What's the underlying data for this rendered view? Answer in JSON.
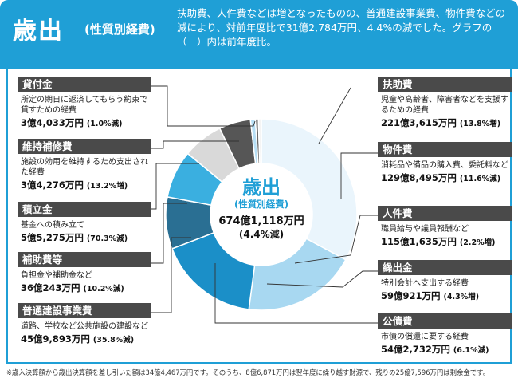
{
  "header": {
    "title": "歳出",
    "subtitle": "(性質別経費)",
    "text": "扶助費、人件費などは増となったものの、普通建設事業費、物件費などの減により、対前年度比で31億2,784万円、4.4%の減でした。グラフの（　）内は前年度比。"
  },
  "center": {
    "title": "歳出",
    "subtitle": "(性質別経費)",
    "total": "674億1,118万円",
    "change": "(4.4%減)"
  },
  "categories": [
    {
      "label": "扶助費",
      "desc": "児童や高齢者、障害者などを支援するための経費",
      "amount": "221億3,615万円",
      "pct": "(13.8%増)"
    },
    {
      "label": "物件費",
      "desc": "消耗品や備品の購入費、委託料など",
      "amount": "129億8,495万円",
      "pct": "(11.6%減)"
    },
    {
      "label": "人件費",
      "desc": "職員給与や議員報酬など",
      "amount": "115億1,635万円",
      "pct": "(2.2%増)"
    },
    {
      "label": "繰出金",
      "desc": "特別会計へ支出する経費",
      "amount": "59億921万円",
      "pct": "(4.3%増)"
    },
    {
      "label": "公債費",
      "desc": "市債の償還に要する経費",
      "amount": "54億2,732万円",
      "pct": "(6.1%減)"
    },
    {
      "label": "普通建設事業費",
      "desc": "道路、学校など公共施設の建設など",
      "amount": "45億9,893万円",
      "pct": "(35.8%減)"
    },
    {
      "label": "補助費等",
      "desc": "負担金や補助金など",
      "amount": "36億243万円",
      "pct": "(10.2%減)"
    },
    {
      "label": "積立金",
      "desc": "基金への積み立て",
      "amount": "5億5,275万円",
      "pct": "(70.3%減)"
    },
    {
      "label": "維持補修費",
      "desc": "施設の効用を維持するため支出された経費",
      "amount": "3億4,276万円",
      "pct": "(13.2%増)"
    },
    {
      "label": "貸付金",
      "desc": "所定の期日に返済してもらう約束で貸すための経費",
      "amount": "3億4,033万円",
      "pct": "(1.0%減)"
    }
  ],
  "chart_data": {
    "type": "pie",
    "categories": [
      "扶助費",
      "物件費",
      "人件費",
      "繰出金",
      "公債費",
      "普通建設事業費",
      "補助費等",
      "積立金",
      "維持補修費",
      "貸付金"
    ],
    "values": [
      2213615,
      1298495,
      1151635,
      590921,
      542732,
      459893,
      360243,
      55275,
      34276,
      34033
    ],
    "colors": [
      "#eaf5fc",
      "#a8d8f1",
      "#1b8fc8",
      "#2a6f93",
      "#3aafe0",
      "#d9d9d9",
      "#565656",
      "#b7dff5",
      "#6a6a6a",
      "#f4f4f4"
    ]
  },
  "footnote": "※歳入決算額から歳出決算額を差し引いた額は34億4,467万円です。そのうち、8億6,871万円は翌年度に繰り越す財源で、残りの25億7,596万円は剰余金です。"
}
